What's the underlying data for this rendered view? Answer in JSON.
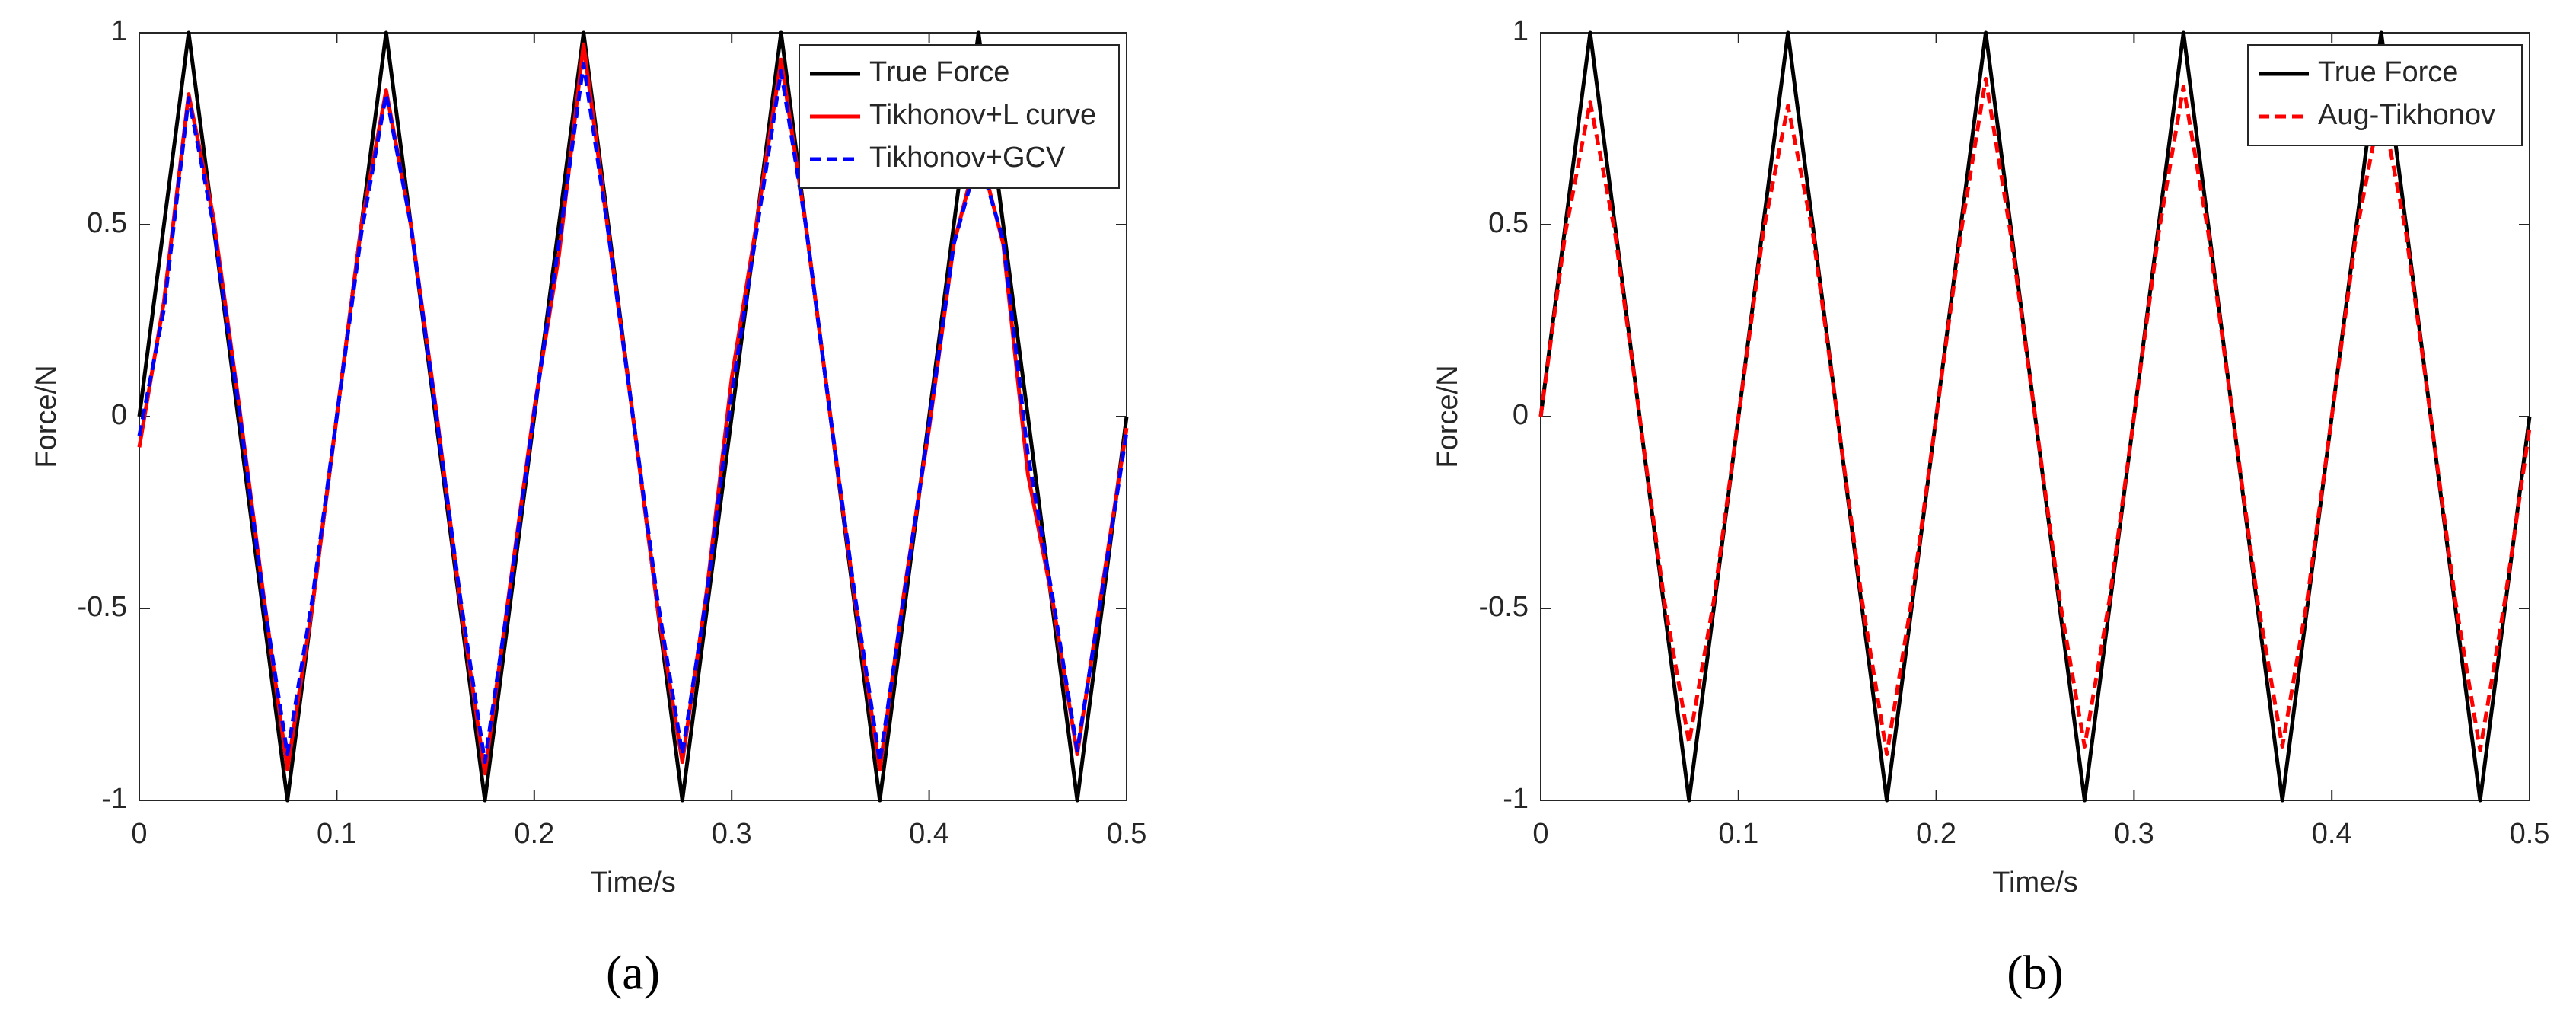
{
  "chart_data": [
    {
      "type": "line",
      "caption": "(a)",
      "xlabel": "Time/s",
      "ylabel": "Force/N",
      "x": [
        0,
        0.0125,
        0.025,
        0.0375,
        0.05,
        0.0625,
        0.075,
        0.0875,
        0.1,
        0.1125,
        0.125,
        0.1375,
        0.15,
        0.1625,
        0.175,
        0.1875,
        0.2,
        0.2125,
        0.225,
        0.2375,
        0.25,
        0.2625,
        0.275,
        0.2875,
        0.3,
        0.3125,
        0.325,
        0.3375,
        0.35,
        0.3625,
        0.375,
        0.3875,
        0.4,
        0.4125,
        0.425,
        0.4375,
        0.45,
        0.4625,
        0.475,
        0.4875,
        0.5
      ],
      "xlim": [
        0,
        0.5
      ],
      "xticks": [
        0,
        0.1,
        0.2,
        0.3,
        0.4,
        0.5
      ],
      "ylim": [
        -1,
        1
      ],
      "yticks": [
        -1,
        -0.5,
        0,
        0.5,
        1
      ],
      "legend": "northeast",
      "series": [
        {
          "name": "True Force",
          "color": "#000000",
          "style": "solid",
          "values": [
            0,
            0.5,
            1,
            0.5,
            0,
            -0.5,
            -1,
            -0.5,
            0,
            0.5,
            1,
            0.5,
            0,
            -0.5,
            -1,
            -0.5,
            0,
            0.5,
            1,
            0.5,
            0,
            -0.5,
            -1,
            -0.5,
            0,
            0.5,
            1,
            0.5,
            0,
            -0.5,
            -1,
            -0.5,
            0,
            0.5,
            1,
            0.5,
            0,
            -0.5,
            -1,
            -0.5,
            0
          ]
        },
        {
          "name": "Tikhonov+L curve",
          "color": "#ff0000",
          "style": "solid",
          "values": [
            -0.08,
            0.3,
            0.84,
            0.52,
            0.05,
            -0.45,
            -0.92,
            -0.5,
            0,
            0.5,
            0.85,
            0.5,
            0.03,
            -0.48,
            -0.93,
            -0.45,
            0.02,
            0.42,
            0.97,
            0.48,
            0,
            -0.5,
            -0.9,
            -0.45,
            0.1,
            0.5,
            0.93,
            0.5,
            0,
            -0.48,
            -0.92,
            -0.45,
            -0.03,
            0.45,
            0.7,
            0.45,
            -0.15,
            -0.48,
            -0.88,
            -0.45,
            -0.03
          ]
        },
        {
          "name": "Tikhonov+GCV",
          "color": "#0000ff",
          "style": "dashed",
          "values": [
            -0.05,
            0.28,
            0.83,
            0.5,
            0.04,
            -0.46,
            -0.88,
            -0.48,
            0,
            0.48,
            0.84,
            0.5,
            0.02,
            -0.47,
            -0.9,
            -0.46,
            0.01,
            0.45,
            0.92,
            0.48,
            0,
            -0.48,
            -0.88,
            -0.46,
            0.06,
            0.48,
            0.9,
            0.5,
            0,
            -0.47,
            -0.9,
            -0.46,
            -0.02,
            0.45,
            0.68,
            0.46,
            -0.1,
            -0.47,
            -0.87,
            -0.46,
            -0.04
          ]
        }
      ]
    },
    {
      "type": "line",
      "caption": "(b)",
      "xlabel": "Time/s",
      "ylabel": "Force/N",
      "x": [
        0,
        0.0125,
        0.025,
        0.0375,
        0.05,
        0.0625,
        0.075,
        0.0875,
        0.1,
        0.1125,
        0.125,
        0.1375,
        0.15,
        0.1625,
        0.175,
        0.1875,
        0.2,
        0.2125,
        0.225,
        0.2375,
        0.25,
        0.2625,
        0.275,
        0.2875,
        0.3,
        0.3125,
        0.325,
        0.3375,
        0.35,
        0.3625,
        0.375,
        0.3875,
        0.4,
        0.4125,
        0.425,
        0.4375,
        0.45,
        0.4625,
        0.475,
        0.4875,
        0.5
      ],
      "xlim": [
        0,
        0.5
      ],
      "xticks": [
        0,
        0.1,
        0.2,
        0.3,
        0.4,
        0.5
      ],
      "ylim": [
        -1,
        1
      ],
      "yticks": [
        -1,
        -0.5,
        0,
        0.5,
        1
      ],
      "legend": "northeast",
      "series": [
        {
          "name": "True Force",
          "color": "#000000",
          "style": "solid",
          "values": [
            0,
            0.5,
            1,
            0.5,
            0,
            -0.5,
            -1,
            -0.5,
            0,
            0.5,
            1,
            0.5,
            0,
            -0.5,
            -1,
            -0.5,
            0,
            0.5,
            1,
            0.5,
            0,
            -0.5,
            -1,
            -0.5,
            0,
            0.5,
            1,
            0.5,
            0,
            -0.5,
            -1,
            -0.5,
            0,
            0.5,
            1,
            0.5,
            0,
            -0.5,
            -1,
            -0.5,
            0
          ]
        },
        {
          "name": "Aug-Tikhonov",
          "color": "#ff0000",
          "style": "dashed",
          "values": [
            0,
            0.48,
            0.82,
            0.48,
            0,
            -0.48,
            -0.85,
            -0.48,
            0,
            0.48,
            0.81,
            0.48,
            0,
            -0.48,
            -0.88,
            -0.48,
            0,
            0.48,
            0.88,
            0.48,
            0,
            -0.48,
            -0.86,
            -0.48,
            0,
            0.48,
            0.86,
            0.48,
            0,
            -0.48,
            -0.86,
            -0.48,
            0,
            0.48,
            0.82,
            0.48,
            0,
            -0.48,
            -0.87,
            -0.48,
            -0.03
          ]
        }
      ]
    }
  ]
}
